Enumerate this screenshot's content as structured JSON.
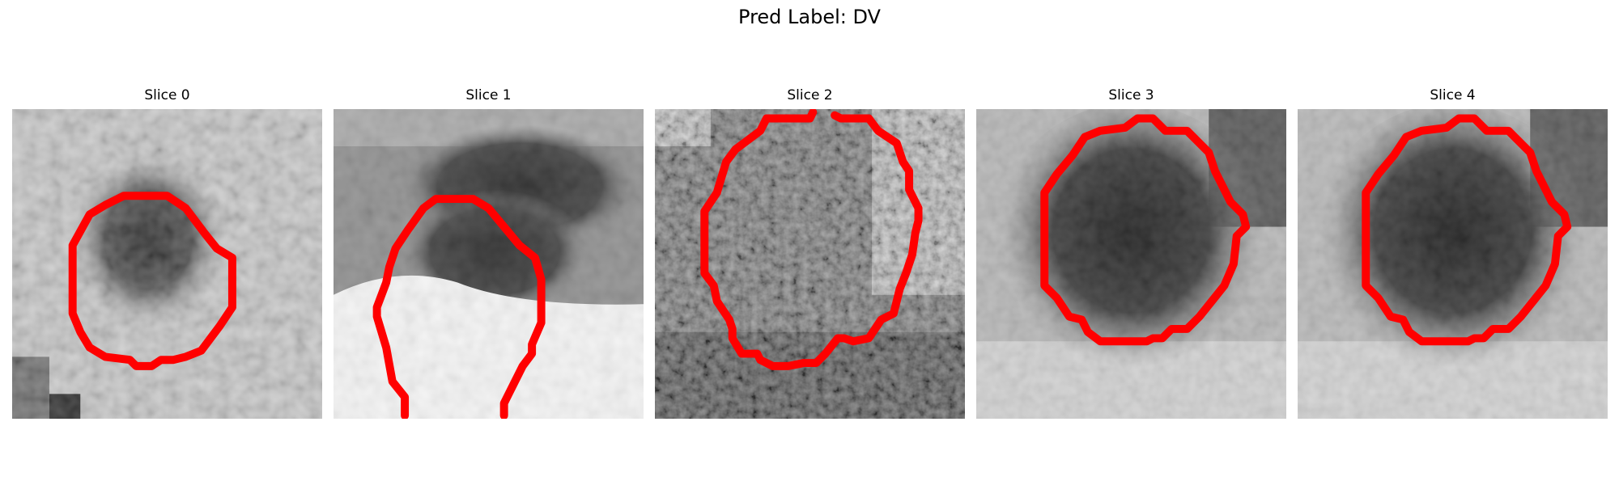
{
  "figure": {
    "title": "Pred Label: DV",
    "colormap": "grayscale",
    "contour_color": "#ff0000"
  },
  "panels": [
    {
      "title": "Slice 0"
    },
    {
      "title": "Slice 1"
    },
    {
      "title": "Slice 2"
    },
    {
      "title": "Slice 3"
    },
    {
      "title": "Slice 4"
    }
  ]
}
